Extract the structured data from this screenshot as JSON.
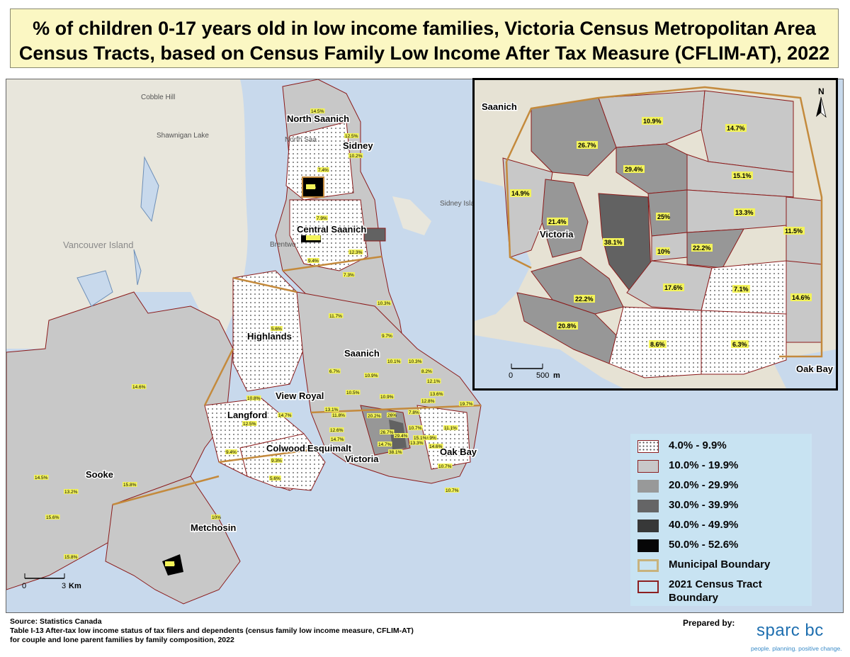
{
  "title": {
    "line1": "% of children 0-17 years old in low income families, Victoria Census Metropolitan Area",
    "line2": "Census Tracts, based on Census Family Low Income After Tax Measure (CFLIM-AT), 2022"
  },
  "map": {
    "places": [
      {
        "id": "north-saanich",
        "name": "North Saanich"
      },
      {
        "id": "sidney",
        "name": "Sidney"
      },
      {
        "id": "central-saanich",
        "name": "Central Saanich"
      },
      {
        "id": "highlands",
        "name": "Highlands"
      },
      {
        "id": "saanich",
        "name": "Saanich"
      },
      {
        "id": "view-royal",
        "name": "View Royal"
      },
      {
        "id": "langford",
        "name": "Langford"
      },
      {
        "id": "colwood",
        "name": "Colwood"
      },
      {
        "id": "esquimalt",
        "name": "Esquimalt"
      },
      {
        "id": "victoria",
        "name": "Victoria"
      },
      {
        "id": "oak-bay",
        "name": "Oak Bay"
      },
      {
        "id": "sooke",
        "name": "Sooke"
      },
      {
        "id": "metchosin",
        "name": "Metchosin"
      }
    ],
    "basemap_labels": [
      "Cobble Hill",
      "Shawnigan Lake",
      "Vancouver Island",
      "North Saa",
      "Brentwo",
      "Sidney Island"
    ],
    "tract_values": [
      "14.5%",
      "12.5%",
      "10.2%",
      "7.4%",
      "50%",
      "7.9%",
      "52.6%",
      "12.3%",
      "9.4%",
      "7.3%",
      "10.3%",
      "11.7%",
      "9.7%",
      "5.6%",
      "6.7%",
      "10.9%",
      "10.1%",
      "10.3%",
      "8.2%",
      "12.1%",
      "14.6%",
      "10.5%",
      "10.8%",
      "10.9%",
      "13.6%",
      "12.8%",
      "19.7%",
      "14.7%",
      "12.5%",
      "13.1%",
      "11.8%",
      "20.2%",
      "26%",
      "7.8%",
      "10.7%",
      "12.6%",
      "26.7%",
      "14.7%",
      "9.9%",
      "11.1%",
      "9.4%",
      "9.3%",
      "14.7%",
      "29.4%",
      "15.1%",
      "5.6%",
      "38.1%",
      "13.3%",
      "10.7%",
      "14.6%",
      "15.8%",
      "13.2%",
      "15.6%",
      "10%",
      "10.7%",
      "14.5%",
      "15.8%",
      "50%"
    ],
    "scale": {
      "zero": "0",
      "three": "3",
      "unit": "Km"
    }
  },
  "inset": {
    "places": [
      {
        "id": "saanich",
        "name": "Saanich"
      },
      {
        "id": "victoria",
        "name": "Victoria"
      },
      {
        "id": "oak-bay",
        "name": "Oak Bay"
      }
    ],
    "tracts": [
      {
        "value": "10.9%",
        "class": "10.0% - 19.9%"
      },
      {
        "value": "14.7%",
        "class": "10.0% - 19.9%"
      },
      {
        "value": "26.7%",
        "class": "20.0% - 29.9%"
      },
      {
        "value": "29.4%",
        "class": "20.0% - 29.9%"
      },
      {
        "value": "15.1%",
        "class": "10.0% - 19.9%"
      },
      {
        "value": "14.9%",
        "class": "10.0% - 19.9%"
      },
      {
        "value": "21.4%",
        "class": "20.0% - 29.9%"
      },
      {
        "value": "25%",
        "class": "20.0% - 29.9%"
      },
      {
        "value": "13.3%",
        "class": "10.0% - 19.9%"
      },
      {
        "value": "11.5%",
        "class": "10.0% - 19.9%"
      },
      {
        "value": "38.1%",
        "class": "30.0% - 39.9%"
      },
      {
        "value": "10%",
        "class": "10.0% - 19.9%"
      },
      {
        "value": "22.2%",
        "class": "20.0% - 29.9%"
      },
      {
        "value": "17.6%",
        "class": "10.0% - 19.9%"
      },
      {
        "value": "7.1%",
        "class": "4.0% - 9.9%"
      },
      {
        "value": "22.2%",
        "class": "20.0% - 29.9%"
      },
      {
        "value": "14.6%",
        "class": "10.0% - 19.9%"
      },
      {
        "value": "20.8%",
        "class": "20.0% - 29.9%"
      },
      {
        "value": "8.6%",
        "class": "4.0% - 9.9%"
      },
      {
        "value": "6.3%",
        "class": "4.0% - 9.9%"
      }
    ],
    "scale": {
      "zero": "0",
      "five_hundred": "500",
      "unit": "m"
    },
    "north_arrow": "N"
  },
  "legend": {
    "items": [
      {
        "label": "4.0% - 9.9%",
        "color": "#ffffff",
        "pattern": "dots"
      },
      {
        "label": "10.0% - 19.9%",
        "color": "#c8c8c8"
      },
      {
        "label": "20.0% - 29.9%",
        "color": "#979797"
      },
      {
        "label": "30.0% - 39.9%",
        "color": "#626262"
      },
      {
        "label": "40.0% - 49.9%",
        "color": "#333333"
      },
      {
        "label": "50.0% - 52.6%",
        "color": "#000000"
      },
      {
        "label": "Municipal Boundary",
        "color": "#c9b27a",
        "style": "outline"
      },
      {
        "label": "2021 Census Tract Boundary",
        "line1": "2021 Census Tract",
        "line2": "Boundary",
        "color": "#8b1a1a",
        "style": "outline"
      }
    ]
  },
  "footer": {
    "source": "Source: Statistics Canada",
    "table": "Table I-13 After-tax low income status of tax filers and dependents (census family low income measure, CFLIM-AT)",
    "table2": "for couple and lone parent families by family composition, 2022",
    "prepared_by": "Prepared by:",
    "logo": "sparc bc",
    "tagline": "people. planning. positive change."
  },
  "colors": {
    "water": "#c8d9ec",
    "land_outside": "#e8e6dc",
    "tract_light": "#c8c8c8",
    "municipal_boundary": "#c48a3c",
    "tract_boundary": "#8b1a1a",
    "label_highlight": "#f3f35a"
  }
}
